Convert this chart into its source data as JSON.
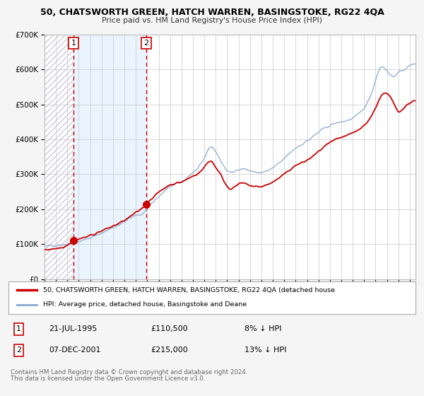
{
  "title": "50, CHATSWORTH GREEN, HATCH WARREN, BASINGSTOKE, RG22 4QA",
  "subtitle": "Price paid vs. HM Land Registry's House Price Index (HPI)",
  "legend_line1": "50, CHATSWORTH GREEN, HATCH WARREN, BASINGSTOKE, RG22 4QA (detached house",
  "legend_line2": "HPI: Average price, detached house, Basingstoke and Deane",
  "footer1": "Contains HM Land Registry data © Crown copyright and database right 2024.",
  "footer2": "This data is licensed under the Open Government Licence v3.0.",
  "sale1_date": "21-JUL-1995",
  "sale1_price": "£110,500",
  "sale1_hpi": "8% ↓ HPI",
  "sale2_date": "07-DEC-2001",
  "sale2_price": "£215,000",
  "sale2_hpi": "13% ↓ HPI",
  "red_line_color": "#cc0000",
  "blue_line_color": "#88aacc",
  "plot_bg_color": "#ffffff",
  "grid_color": "#cccccc",
  "hatch_color": "#ccccdd",
  "shade_color": "#ddeeff",
  "sale1_x": 1995.55,
  "sale1_y": 110500,
  "sale2_x": 2001.92,
  "sale2_y": 215000,
  "vline1_x": 1995.55,
  "vline2_x": 2001.92,
  "ylim": [
    0,
    700000
  ],
  "xlim": [
    1993.0,
    2025.5
  ]
}
